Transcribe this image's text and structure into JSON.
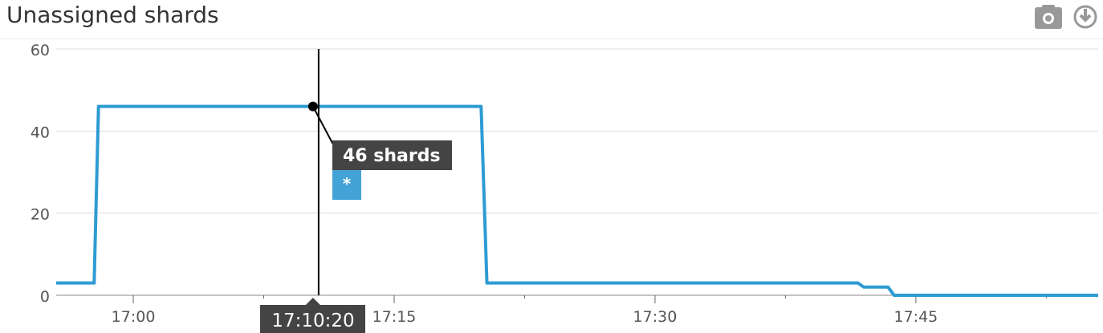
{
  "widget": {
    "title": "Unassigned shards",
    "icons": [
      "camera-icon",
      "download-icon"
    ]
  },
  "chart_data": {
    "type": "line",
    "title": "Unassigned shards",
    "xlabel": "",
    "ylabel": "",
    "ylim": [
      0,
      60
    ],
    "xlim": [
      "16:55:34",
      "17:55:29"
    ],
    "yticks": [
      0,
      20,
      40,
      60
    ],
    "xticks": [
      "17:00",
      "17:15",
      "17:30",
      "17:45"
    ],
    "grid": true,
    "color": "#2e9bd3",
    "series": [
      {
        "points": [
          [
            "16:55:34",
            3
          ],
          [
            "16:57:45",
            3
          ],
          [
            "16:58:00",
            46
          ],
          [
            "17:20:00",
            46
          ],
          [
            "17:20:20",
            3
          ],
          [
            "17:41:40",
            3
          ],
          [
            "17:42:00",
            2
          ],
          [
            "17:43:24",
            2
          ],
          [
            "17:43:45",
            0
          ],
          [
            "17:55:29",
            0
          ]
        ]
      }
    ],
    "hover": {
      "time": "17:10:20",
      "value": 46,
      "label": "46 shards",
      "series_tag": "*",
      "tag_color": "#44a3d6"
    }
  }
}
